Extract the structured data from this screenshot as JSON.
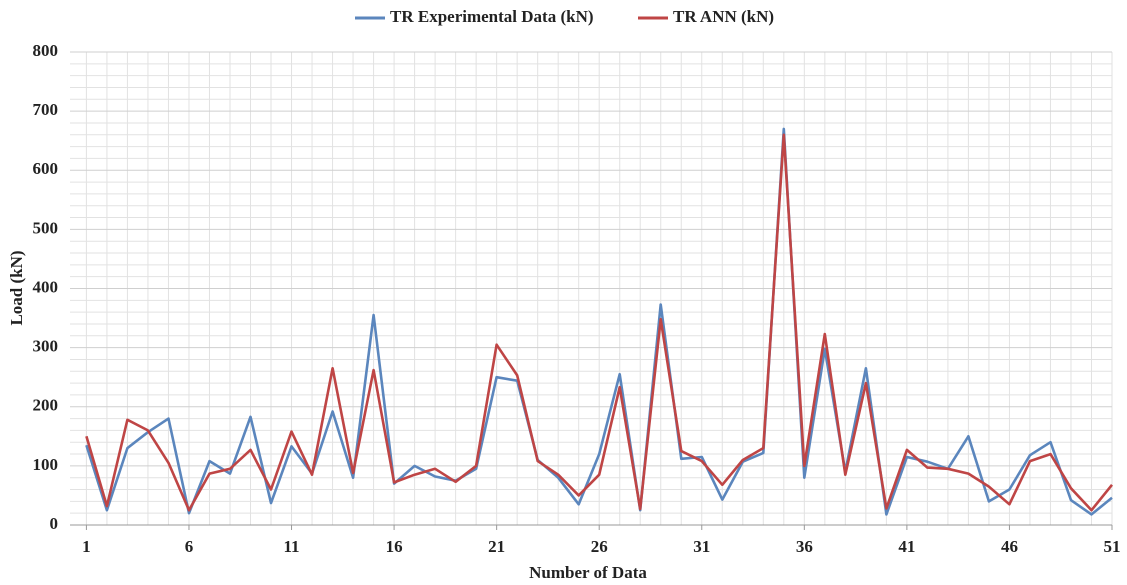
{
  "chart_data": {
    "type": "line",
    "xlabel": "Number of Data",
    "ylabel": "Load (kN)",
    "x": [
      1,
      2,
      3,
      4,
      5,
      6,
      7,
      8,
      9,
      10,
      11,
      12,
      13,
      14,
      15,
      16,
      17,
      18,
      19,
      20,
      21,
      22,
      23,
      24,
      25,
      26,
      27,
      28,
      29,
      30,
      31,
      32,
      33,
      34,
      35,
      36,
      37,
      38,
      39,
      40,
      41,
      42,
      43,
      44,
      45,
      46,
      47,
      48,
      49,
      50,
      51
    ],
    "series": [
      {
        "name": "TR Experimental Data (kN)",
        "color": "#5b86bd",
        "values": [
          135,
          25,
          130,
          157,
          180,
          20,
          108,
          87,
          183,
          37,
          133,
          87,
          192,
          80,
          355,
          70,
          100,
          82,
          75,
          95,
          250,
          244,
          110,
          80,
          35,
          120,
          255,
          25,
          373,
          112,
          115,
          43,
          107,
          122,
          670,
          80,
          298,
          90,
          265,
          18,
          115,
          107,
          95,
          150,
          40,
          60,
          118,
          140,
          42,
          18,
          46
        ]
      },
      {
        "name": "TR ANN (kN)",
        "color": "#bf4545",
        "values": [
          150,
          32,
          178,
          160,
          105,
          25,
          87,
          95,
          127,
          60,
          158,
          85,
          265,
          88,
          262,
          72,
          85,
          95,
          73,
          100,
          305,
          253,
          108,
          85,
          50,
          85,
          233,
          27,
          348,
          125,
          108,
          68,
          110,
          130,
          660,
          100,
          323,
          85,
          240,
          28,
          127,
          97,
          95,
          87,
          65,
          35,
          108,
          120,
          62,
          25,
          68
        ]
      }
    ],
    "xlim": [
      0.2,
      51
    ],
    "xticks": [
      1,
      6,
      11,
      16,
      21,
      26,
      31,
      36,
      41,
      46,
      51
    ],
    "ylim": [
      0,
      800
    ],
    "yticks": [
      0,
      100,
      200,
      300,
      400,
      500,
      600,
      700,
      800
    ],
    "grid": true,
    "legend": "top"
  }
}
